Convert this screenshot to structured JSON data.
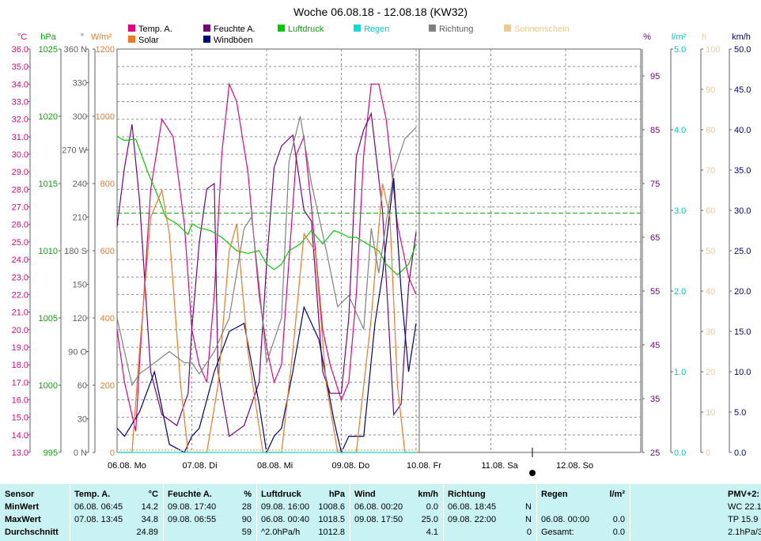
{
  "title": "Woche 06.08.18 - 12.08.18 (KW32)",
  "legend": [
    {
      "label": "Temp. A.",
      "color": "#e6007e"
    },
    {
      "label": "Solar",
      "color": "#f07820"
    },
    {
      "label": "Feuchte A.",
      "color": "#7a0080"
    },
    {
      "label": "Windböen",
      "color": "#000080"
    },
    {
      "label": "Luftdruck",
      "color": "#00cc00"
    },
    {
      "label": "Regen",
      "color": "#00e0e0"
    },
    {
      "label": "Richtung",
      "color": "#808080"
    },
    {
      "label": "Sonnenschein",
      "color": "#f0c890"
    }
  ],
  "axes": {
    "temp": {
      "unit": "°C",
      "color": "#e6007e",
      "ticks": [
        "36.0",
        "35.0",
        "34.0",
        "33.0",
        "32.0",
        "31.0",
        "30.0",
        "29.0",
        "28.0",
        "27.0",
        "26.0",
        "25.0",
        "24.0",
        "23.0",
        "22.0",
        "21.0",
        "20.0",
        "19.0",
        "18.0",
        "17.0",
        "16.0",
        "15.0",
        "14.0",
        "13.0"
      ]
    },
    "pressure": {
      "unit": "hPa",
      "color": "#00aa00",
      "ticks": [
        "1025",
        "1020",
        "1015",
        "1010",
        "1005",
        "1000",
        "995"
      ]
    },
    "direction": {
      "unit": "°",
      "color": "#606060",
      "ticks": [
        "360 N",
        "330",
        "300",
        "270 W",
        "240",
        "210",
        "180 S",
        "150",
        "120",
        "90  O",
        "60",
        "30",
        "0   N"
      ]
    },
    "solar": {
      "unit": "W/m²",
      "color": "#f07820",
      "ticks": [
        "1200",
        "1000",
        "800",
        "600",
        "400",
        "200",
        "0"
      ]
    },
    "humidity": {
      "unit": "%",
      "color": "#7a0080",
      "ticks": [
        "95",
        "85",
        "75",
        "65",
        "55",
        "45",
        "35",
        "25"
      ]
    },
    "rain": {
      "unit": "l/m²",
      "color": "#00c8c8",
      "ticks": [
        "5.0",
        "4.0",
        "3.0",
        "2.0",
        "1.0",
        "0.0"
      ]
    },
    "sunshine": {
      "unit": "h",
      "color": "#f0c890",
      "ticks": [
        "100",
        "90",
        "80",
        "70",
        "60",
        "50",
        "40",
        "30",
        "20",
        "10",
        "0"
      ]
    },
    "wind": {
      "unit": "km/h",
      "color": "#000080",
      "ticks": [
        "50.0",
        "45.0",
        "40.0",
        "35.0",
        "30.0",
        "25.0",
        "20.0",
        "15.0",
        "10.0",
        "5.0",
        "0.0"
      ]
    }
  },
  "x_labels": [
    "06.08.  Mo",
    "07.08.  Di",
    "08.08.  Mi",
    "09.08.  Do",
    "10.08.  Fr",
    "11.08.  Sa",
    "12.08.  So"
  ],
  "chart_data": {
    "type": "line",
    "x_unit": "days since 06.08. 00:00",
    "series": [
      {
        "name": "Temp. A.",
        "axis": "temp",
        "color": "#e6007e",
        "x": [
          0,
          0.1,
          0.25,
          0.3,
          0.45,
          0.6,
          0.75,
          0.9,
          1.0,
          1.1,
          1.2,
          1.3,
          1.4,
          1.5,
          1.6,
          1.75,
          1.9,
          2.0,
          2.1,
          2.2,
          2.3,
          2.4,
          2.5,
          2.6,
          2.75,
          2.85,
          3.0,
          3.1,
          3.2,
          3.3,
          3.4,
          3.5,
          3.6,
          3.75,
          3.9,
          4.0
        ],
        "y": [
          20,
          17,
          14.2,
          18,
          28,
          32,
          31,
          26,
          20,
          18,
          17,
          22,
          30,
          34,
          33,
          29,
          22,
          19,
          17,
          18,
          24,
          30,
          31,
          27,
          20,
          18,
          16,
          17,
          22,
          30,
          34,
          34,
          32,
          26,
          23,
          22
        ]
      },
      {
        "name": "Feuchte A.",
        "axis": "humidity",
        "color": "#7a0080",
        "x": [
          0,
          0.1,
          0.2,
          0.3,
          0.45,
          0.6,
          0.8,
          0.95,
          1.0,
          1.1,
          1.2,
          1.3,
          1.35,
          1.5,
          1.7,
          1.9,
          2.0,
          2.1,
          2.2,
          2.35,
          2.5,
          2.6,
          2.75,
          2.85,
          3.0,
          3.1,
          3.2,
          3.3,
          3.4,
          3.55,
          3.7,
          3.8,
          3.9,
          4.0
        ],
        "y": [
          67,
          78,
          86,
          72,
          40,
          32,
          30,
          36,
          48,
          64,
          74,
          75,
          40,
          28,
          30,
          38,
          60,
          78,
          82,
          84,
          70,
          68,
          40,
          36,
          36,
          50,
          80,
          85,
          88,
          70,
          32,
          34,
          56,
          66
        ]
      },
      {
        "name": "Luftdruck",
        "axis": "pressure",
        "color": "#00cc00",
        "x": [
          0,
          0.1,
          0.25,
          0.4,
          0.55,
          0.65,
          0.8,
          0.95,
          1.0,
          1.1,
          1.25,
          1.4,
          1.6,
          1.75,
          1.9,
          2.0,
          2.1,
          2.2,
          2.3,
          2.45,
          2.6,
          2.75,
          2.9,
          3.0,
          3.1,
          3.2,
          3.35,
          3.5,
          3.6,
          3.75,
          3.9,
          4.0
        ],
        "y": [
          1018.5,
          1018.2,
          1018.3,
          1016,
          1014,
          1012.5,
          1012,
          1011.2,
          1012,
          1011.7,
          1011.5,
          1011,
          1010,
          1009.8,
          1010,
          1009,
          1008.6,
          1009,
          1010,
          1010.5,
          1011.5,
          1010.5,
          1011.5,
          1011.3,
          1011,
          1011,
          1010.5,
          1010,
          1009,
          1008.2,
          1009,
          1010.5
        ]
      },
      {
        "name": "Windböen",
        "axis": "wind",
        "color": "#000080",
        "x": [
          0,
          0.1,
          0.3,
          0.5,
          0.7,
          0.9,
          1.0,
          1.1,
          1.3,
          1.5,
          1.7,
          1.9,
          2.0,
          2.1,
          2.2,
          2.35,
          2.5,
          2.7,
          2.9,
          3.0,
          3.1,
          3.3,
          3.45,
          3.55,
          3.7,
          3.8,
          3.9,
          4.0
        ],
        "y": [
          3,
          2,
          5,
          10,
          1,
          0,
          2,
          3,
          10,
          15,
          16,
          6,
          0,
          2,
          3,
          10,
          18,
          14,
          4,
          0,
          2,
          2,
          16,
          22,
          34,
          20,
          10,
          16
        ]
      },
      {
        "name": "Solar",
        "axis": "solar",
        "color": "#f07820",
        "x": [
          0,
          0.2,
          0.3,
          0.45,
          0.6,
          0.7,
          0.85,
          0.95,
          1.0,
          1.2,
          1.35,
          1.5,
          1.6,
          1.75,
          1.95,
          2.0,
          2.2,
          2.35,
          2.5,
          2.65,
          2.8,
          2.95,
          3.0,
          3.2,
          3.3,
          3.4,
          3.55,
          3.65,
          3.75,
          3.85,
          4.0
        ],
        "y": [
          0,
          0,
          300,
          700,
          780,
          650,
          200,
          0,
          0,
          0,
          200,
          600,
          680,
          300,
          0,
          0,
          0,
          300,
          650,
          600,
          200,
          0,
          0,
          0,
          200,
          400,
          800,
          700,
          200,
          0,
          0
        ]
      },
      {
        "name": "Richtung",
        "axis": "direction",
        "color": "#808080",
        "x": [
          0,
          0.1,
          0.2,
          0.3,
          0.5,
          0.7,
          0.9,
          1.0,
          1.1,
          1.3,
          1.5,
          1.7,
          1.8,
          1.9,
          2.0,
          2.1,
          2.2,
          2.3,
          2.45,
          2.6,
          2.8,
          2.95,
          3.1,
          3.3,
          3.4,
          3.5,
          3.7,
          3.85,
          4.0
        ],
        "y": [
          120,
          90,
          60,
          70,
          80,
          90,
          80,
          80,
          70,
          90,
          120,
          200,
          210,
          150,
          80,
          100,
          120,
          260,
          300,
          240,
          180,
          130,
          140,
          110,
          200,
          160,
          250,
          280,
          290
        ]
      },
      {
        "name": "Regen",
        "axis": "rain",
        "color": "#00e0e0",
        "x": [
          0,
          4
        ],
        "y": [
          0,
          0
        ]
      }
    ]
  },
  "stats": {
    "headers": {
      "sensor": "Sensor",
      "temp": "Temp. A.",
      "temp_unit": "°C",
      "hum": "Feuchte A.",
      "hum_unit": "%",
      "press": "Luftdruck",
      "press_unit": "hPa",
      "wind": "Wind",
      "wind_unit": "km/h",
      "dir": "Richtung",
      "rain": "Regen",
      "rain_unit": "l/m²",
      "pmv": "PMV+2:"
    },
    "row_labels": [
      "MinWert",
      "MaxWert",
      "Durchschnitt"
    ],
    "min": {
      "temp_t": "06.08.  06:45",
      "temp_v": "14.2",
      "hum_t": "09.08.  17:40",
      "hum_v": "28",
      "press_t": "09.08.  16:00",
      "press_v": "1008.6",
      "wind_t": "06.08.  00:20",
      "wind_v": "0.0",
      "dir_t": "06.08.  18:45",
      "dir_v": "N",
      "pmv": "WC 22.1"
    },
    "max": {
      "temp_t": "07.08.  13:45",
      "temp_v": "34.8",
      "hum_t": "09.08.  06:55",
      "hum_v": "90",
      "press_t": "06.08.  00:40",
      "press_v": "1018.5",
      "wind_t": "09.08.  17:50",
      "wind_v": "25.0",
      "dir_t": "09.08.  22:00",
      "dir_v": "N",
      "rain_t": "06.08.  00:00",
      "rain_v": "0.0",
      "pmv": "TP 15.9"
    },
    "avg": {
      "temp_v": "24.89",
      "hum_v": "59",
      "press_t": "^2.0hPa/h",
      "press_v": "1012.8",
      "wind_v": "4.1",
      "dir_v": "0",
      "rain_t": "Gesamt:",
      "rain_v": "0.0",
      "pmv": "2.1hPa/3"
    }
  }
}
